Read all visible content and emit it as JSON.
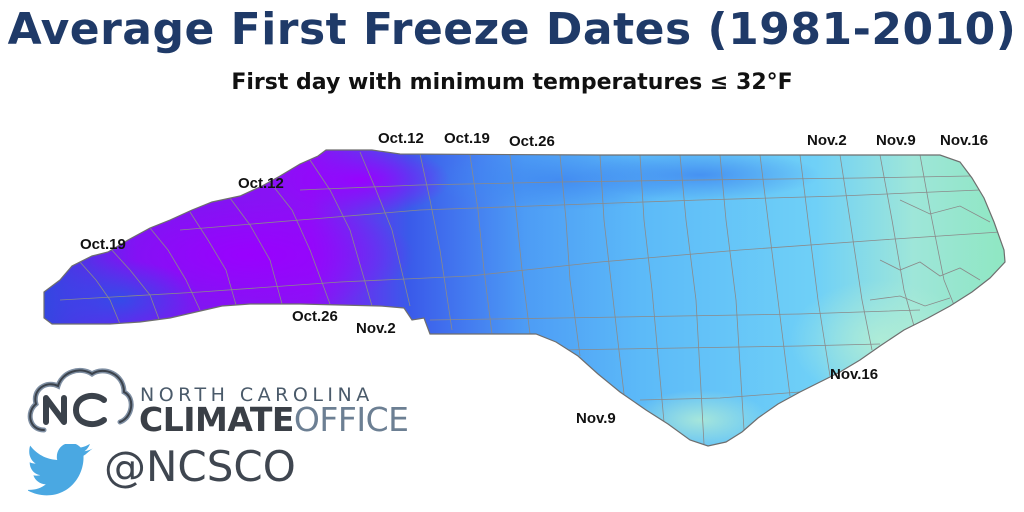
{
  "header": {
    "title": "Average First Freeze Dates (1981-2010)",
    "subtitle": "First day with minimum temperatures ≤ 32°F"
  },
  "map": {
    "region": "North Carolina",
    "labels": {
      "oct12_top": "Oct.12",
      "oct19_top": "Oct.19",
      "oct26_top": "Oct.26",
      "nov2_top": "Nov.2",
      "nov9_top": "Nov.9",
      "nov16_top": "Nov.16",
      "oct12_west": "Oct.12",
      "oct19_west": "Oct.19",
      "oct26_south": "Oct.26",
      "nov2_south": "Nov.2",
      "nov16_coast": "Nov.16",
      "nov9_south": "Nov.9"
    },
    "colors": {
      "oct12": "#9b00ff",
      "oct19": "#3a4ae6",
      "oct26": "#3b7bf0",
      "nov2": "#4aa6f3",
      "nov9": "#64c6fb",
      "nov16": "#8fe6c4"
    }
  },
  "branding": {
    "org_line1": "NORTH CAROLINA",
    "org_bold": "CLIMATE",
    "org_light": "OFFICE",
    "twitter_handle": "@NCSCO",
    "logo_icon": "cloud-nc-icon",
    "twitter_icon": "twitter-bird-icon"
  }
}
